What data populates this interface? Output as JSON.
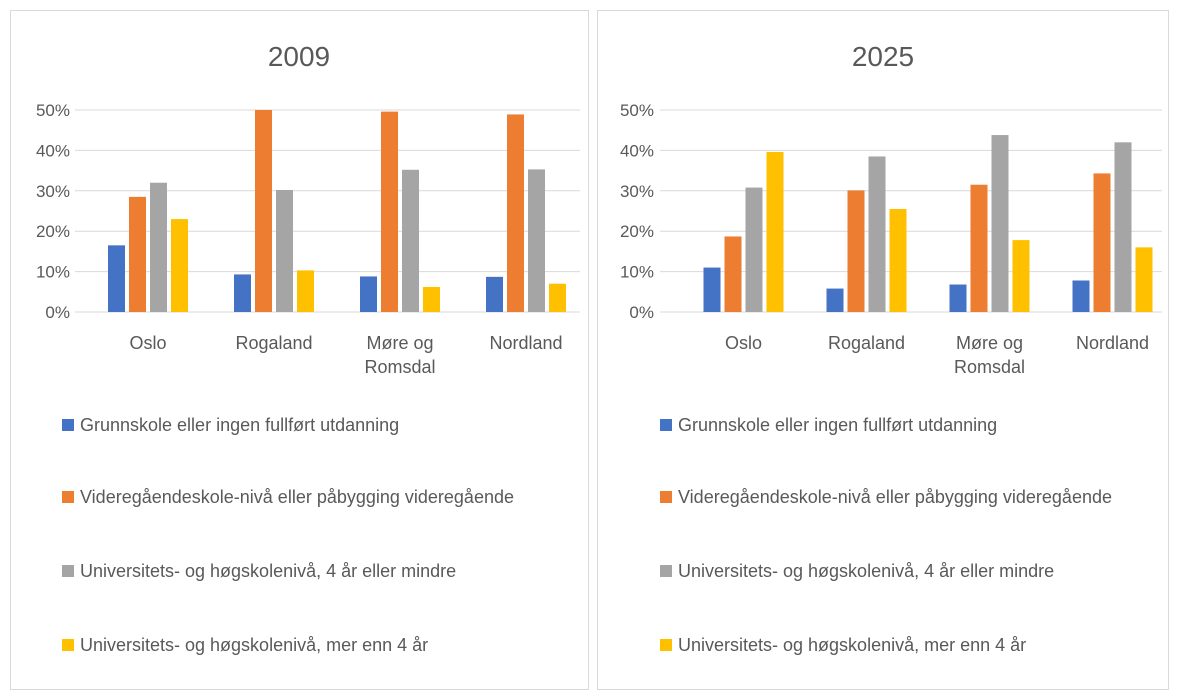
{
  "chart_data": [
    {
      "type": "bar",
      "title": "2009",
      "categories": [
        "Oslo",
        "Rogaland",
        "Møre og Romsdal",
        "Nordland"
      ],
      "series": [
        {
          "name": "Grunnskole eller ingen fullført utdanning",
          "color": "#4472c4",
          "values": [
            16.5,
            9.3,
            8.8,
            8.7
          ]
        },
        {
          "name": "Videregåendeskole-nivå eller påbygging videregående",
          "color": "#ed7d31",
          "values": [
            28.5,
            50,
            49.6,
            48.9
          ]
        },
        {
          "name": "Universitets- og høgskolenivå, 4 år eller mindre",
          "color": "#a5a5a5",
          "values": [
            32,
            30.2,
            35.2,
            35.3
          ]
        },
        {
          "name": "Universitets- og høgskolenivå, mer enn 4 år",
          "color": "#ffc000",
          "values": [
            23,
            10.3,
            6.2,
            7
          ]
        }
      ],
      "ylim": [
        0,
        50
      ],
      "yticks": [
        {
          "value": 0,
          "label": "0%"
        },
        {
          "value": 10,
          "label": "10%"
        },
        {
          "value": 20,
          "label": "20%"
        },
        {
          "value": 30,
          "label": "30%"
        },
        {
          "value": 40,
          "label": "40%"
        },
        {
          "value": 50,
          "label": "50%"
        }
      ],
      "grid": true,
      "legend": "bottom"
    },
    {
      "type": "bar",
      "title": "2025",
      "categories": [
        "Oslo",
        "Rogaland",
        "Møre og Romsdal",
        "Nordland"
      ],
      "series": [
        {
          "name": "Grunnskole eller ingen fullført utdanning",
          "color": "#4472c4",
          "values": [
            11,
            5.8,
            6.8,
            7.8
          ]
        },
        {
          "name": "Videregåendeskole-nivå eller påbygging videregående",
          "color": "#ed7d31",
          "values": [
            18.7,
            30.1,
            31.5,
            34.3
          ]
        },
        {
          "name": "Universitets- og høgskolenivå, 4 år eller mindre",
          "color": "#a5a5a5",
          "values": [
            30.8,
            38.5,
            43.8,
            42
          ]
        },
        {
          "name": "Universitets- og høgskolenivå, mer enn 4 år",
          "color": "#ffc000",
          "values": [
            39.6,
            25.5,
            17.8,
            16
          ]
        }
      ],
      "ylim": [
        0,
        50
      ],
      "yticks": [
        {
          "value": 0,
          "label": "0%"
        },
        {
          "value": 10,
          "label": "10%"
        },
        {
          "value": 20,
          "label": "20%"
        },
        {
          "value": 30,
          "label": "30%"
        },
        {
          "value": 40,
          "label": "40%"
        },
        {
          "value": 50,
          "label": "50%"
        }
      ],
      "grid": true,
      "legend": "bottom"
    }
  ]
}
